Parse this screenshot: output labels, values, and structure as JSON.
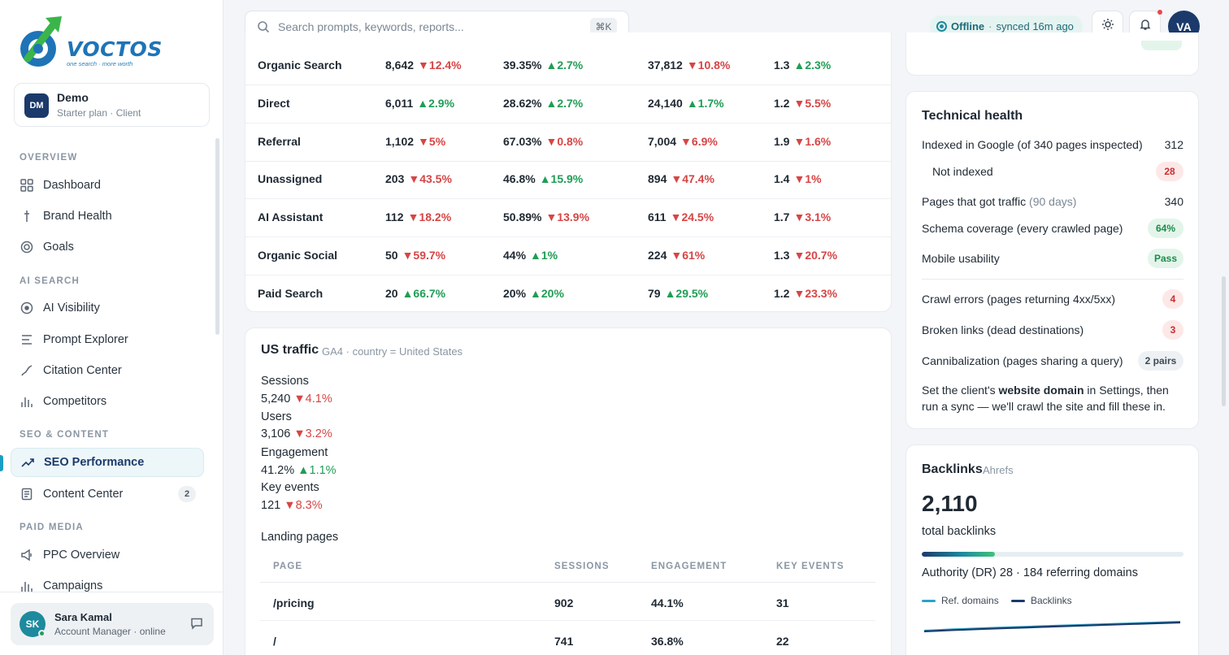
{
  "brand": {
    "logo_text": "VOCTOS",
    "tagline": "one search · more worth"
  },
  "client": {
    "initials": "DM",
    "name": "Demo",
    "plan": "Starter plan · Client"
  },
  "nav": {
    "sections": [
      {
        "title": "OVERVIEW",
        "items": [
          {
            "label": "Dashboard",
            "icon": "grid-icon"
          },
          {
            "label": "Brand Health",
            "icon": "pulse-icon"
          },
          {
            "label": "Goals",
            "icon": "target-icon"
          }
        ]
      },
      {
        "title": "AI SEARCH",
        "items": [
          {
            "label": "AI Visibility",
            "icon": "eye-icon"
          },
          {
            "label": "Prompt Explorer",
            "icon": "lines-icon"
          },
          {
            "label": "Citation Center",
            "icon": "link-icon"
          },
          {
            "label": "Competitors",
            "icon": "bars-icon"
          }
        ]
      },
      {
        "title": "SEO & CONTENT",
        "items": [
          {
            "label": "SEO Performance",
            "icon": "trend-icon",
            "active": true
          },
          {
            "label": "Content Center",
            "icon": "doc-icon",
            "badge": "2"
          }
        ]
      },
      {
        "title": "PAID MEDIA",
        "items": [
          {
            "label": "PPC Overview",
            "icon": "megaphone-icon"
          },
          {
            "label": "Campaigns",
            "icon": "bars-icon"
          }
        ]
      }
    ]
  },
  "user": {
    "initials": "SK",
    "name": "Sara Kamal",
    "role": "Account Manager · online"
  },
  "topbar": {
    "search_placeholder": "Search prompts, keywords, reports...",
    "shortcut": "⌘K",
    "status": "Offline",
    "synced": "synced 16m ago",
    "avatar": "VA"
  },
  "channels": [
    {
      "name": "Organic Search",
      "c1": "8,642",
      "c1d": "▼12.4%",
      "c1t": "down",
      "c2": "39.35%",
      "c2d": "▲2.7%",
      "c2t": "up",
      "c3": "37,812",
      "c3d": "▼10.8%",
      "c3t": "down",
      "c4": "1.3",
      "c4d": "▲2.3%",
      "c4t": "up"
    },
    {
      "name": "Direct",
      "c1": "6,011",
      "c1d": "▲2.9%",
      "c1t": "up",
      "c2": "28.62%",
      "c2d": "▲2.7%",
      "c2t": "up",
      "c3": "24,140",
      "c3d": "▲1.7%",
      "c3t": "up",
      "c4": "1.2",
      "c4d": "▼5.5%",
      "c4t": "down"
    },
    {
      "name": "Referral",
      "c1": "1,102",
      "c1d": "▼5%",
      "c1t": "down",
      "c2": "67.03%",
      "c2d": "▼0.8%",
      "c2t": "down",
      "c3": "7,004",
      "c3d": "▼6.9%",
      "c3t": "down",
      "c4": "1.9",
      "c4d": "▼1.6%",
      "c4t": "down"
    },
    {
      "name": "Unassigned",
      "c1": "203",
      "c1d": "▼43.5%",
      "c1t": "down",
      "c2": "46.8%",
      "c2d": "▲15.9%",
      "c2t": "up",
      "c3": "894",
      "c3d": "▼47.4%",
      "c3t": "down",
      "c4": "1.4",
      "c4d": "▼1%",
      "c4t": "down"
    },
    {
      "name": "AI Assistant",
      "c1": "112",
      "c1d": "▼18.2%",
      "c1t": "down",
      "c2": "50.89%",
      "c2d": "▼13.9%",
      "c2t": "down",
      "c3": "611",
      "c3d": "▼24.5%",
      "c3t": "down",
      "c4": "1.7",
      "c4d": "▼3.1%",
      "c4t": "down"
    },
    {
      "name": "Organic Social",
      "c1": "50",
      "c1d": "▼59.7%",
      "c1t": "down",
      "c2": "44%",
      "c2d": "▲1%",
      "c2t": "up",
      "c3": "224",
      "c3d": "▼61%",
      "c3t": "down",
      "c4": "1.3",
      "c4d": "▼20.7%",
      "c4t": "down"
    },
    {
      "name": "Paid Search",
      "c1": "20",
      "c1d": "▲66.7%",
      "c1t": "up",
      "c2": "20%",
      "c2d": "▲20%",
      "c2t": "up",
      "c3": "79",
      "c3d": "▲29.5%",
      "c3t": "up",
      "c4": "1.2",
      "c4d": "▼23.3%",
      "c4t": "down"
    }
  ],
  "us_traffic": {
    "title": "US traffic",
    "subtitle": "GA4 · country = United States",
    "metrics": [
      {
        "label": "Sessions",
        "value": "5,240",
        "delta": "▼4.1%",
        "trend": "down"
      },
      {
        "label": "Users",
        "value": "3,106",
        "delta": "▼3.2%",
        "trend": "down"
      },
      {
        "label": "Engagement",
        "value": "41.2%",
        "delta": "▲1.1%",
        "trend": "up"
      },
      {
        "label": "Key events",
        "value": "121",
        "delta": "▼8.3%",
        "trend": "down"
      }
    ],
    "landing_title": "Landing pages",
    "landing_headers": [
      "PAGE",
      "SESSIONS",
      "ENGAGEMENT",
      "KEY EVENTS"
    ],
    "landing_rows": [
      {
        "page": "/pricing",
        "sessions": "902",
        "engagement": "44.1%",
        "key_events": "31"
      },
      {
        "page": "/",
        "sessions": "741",
        "engagement": "36.8%",
        "key_events": "22"
      }
    ]
  },
  "technical_health": {
    "title": "Technical health",
    "rows": [
      {
        "label": "Indexed in Google (of 340 pages inspected)",
        "value": "312"
      },
      {
        "label": "Not indexed",
        "value": "28",
        "pill": "red"
      },
      {
        "label": "Pages that got traffic",
        "muted": "(90 days)",
        "value": "340"
      },
      {
        "label": "Schema coverage (every crawled page)",
        "value": "64%",
        "pill": "green"
      },
      {
        "label": "Mobile usability",
        "value": "Pass",
        "pill": "green"
      },
      {
        "label": "Crawl errors (pages returning 4xx/5xx)",
        "value": "4",
        "pill": "red"
      },
      {
        "label": "Broken links (dead destinations)",
        "value": "3",
        "pill": "red"
      },
      {
        "label": "Cannibalization (pages sharing a query)",
        "value": "2 pairs",
        "pill": "gray"
      }
    ],
    "note_pre": "Set the client's ",
    "note_bold": "website domain",
    "note_post": " in Settings, then run a sync — we'll crawl the site and fill these in."
  },
  "backlinks": {
    "title": "Backlinks",
    "source": "Ahrefs",
    "total": "2,110",
    "caption": "total backlinks",
    "authority_text": "Authority (DR) 28 · 184 referring domains",
    "authority_dr": 28,
    "legend": [
      "Ref. domains",
      "Backlinks"
    ],
    "colors": {
      "ref_domains": "#2aa3c9",
      "backlinks": "#1b3a6b"
    }
  },
  "colors": {
    "up": "#1f9d55",
    "down": "#d64545",
    "accent": "#1b3a6b",
    "teal": "#1d8a9e"
  }
}
